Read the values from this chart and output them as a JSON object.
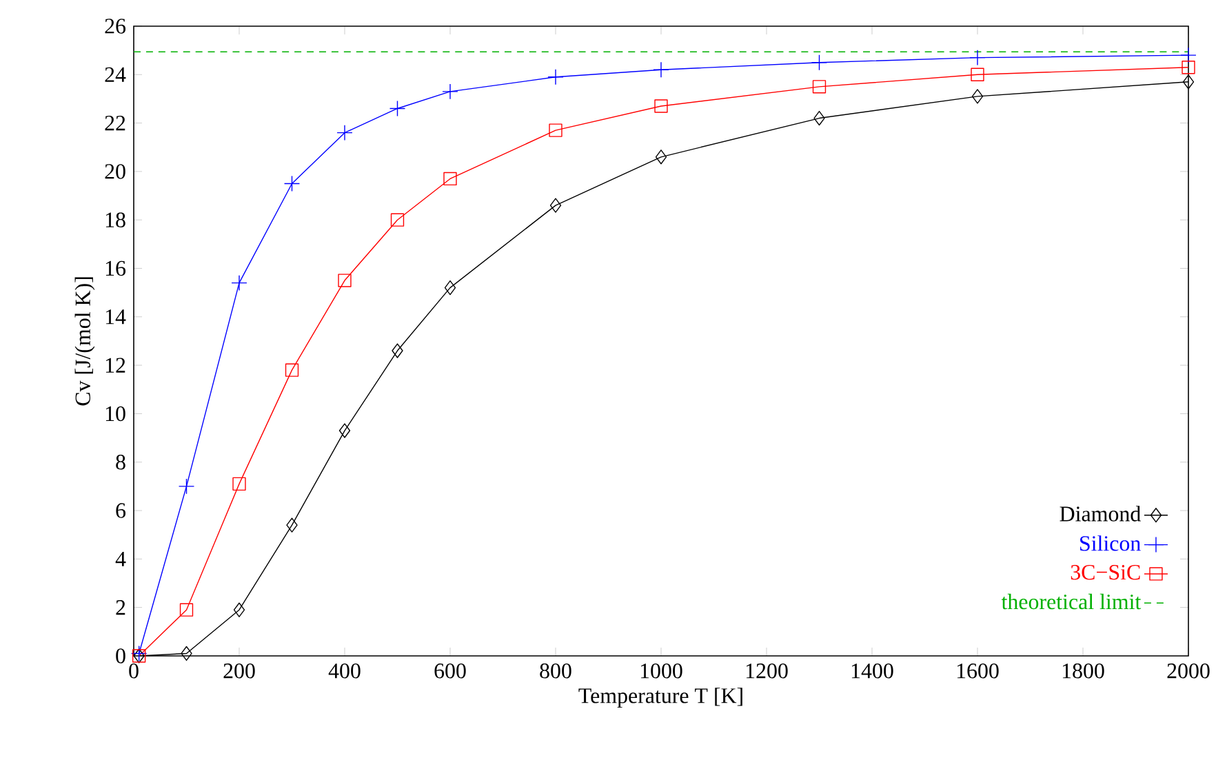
{
  "chart_data": {
    "type": "line",
    "xlabel": "Temperature T [K]",
    "ylabel": "Cv [J/(mol K)]",
    "xlim": [
      0,
      2000
    ],
    "ylim": [
      0,
      26
    ],
    "xticks": [
      0,
      200,
      400,
      600,
      800,
      1000,
      1200,
      1400,
      1600,
      1800,
      2000
    ],
    "yticks": [
      0,
      2,
      4,
      6,
      8,
      10,
      12,
      14,
      16,
      18,
      20,
      22,
      24,
      26
    ],
    "grid": false,
    "legend": "bottom right",
    "series": [
      {
        "name": "Diamond",
        "color": "#000000",
        "marker": "diamond",
        "line_style": "solid",
        "x": [
          10,
          100,
          200,
          300,
          400,
          500,
          600,
          800,
          1000,
          1300,
          1600,
          2000
        ],
        "values": [
          0,
          0.1,
          1.9,
          5.4,
          9.3,
          12.6,
          15.2,
          18.6,
          20.6,
          22.2,
          23.1,
          23.7
        ]
      },
      {
        "name": "Silicon",
        "color": "#0000ff",
        "marker": "cross",
        "line_style": "solid",
        "x": [
          10,
          100,
          200,
          300,
          400,
          500,
          600,
          800,
          1000,
          1300,
          1600,
          2000
        ],
        "values": [
          0.1,
          7.0,
          15.4,
          19.5,
          21.6,
          22.6,
          23.3,
          23.9,
          24.2,
          24.5,
          24.7,
          24.8
        ]
      },
      {
        "name": "3C−SiC",
        "color": "#ff0000",
        "marker": "square",
        "line_style": "solid",
        "x": [
          10,
          100,
          200,
          300,
          400,
          500,
          600,
          800,
          1000,
          1300,
          1600,
          2000
        ],
        "values": [
          0,
          1.9,
          7.1,
          11.8,
          15.5,
          18.0,
          19.7,
          21.7,
          22.7,
          23.5,
          24.0,
          24.3
        ]
      },
      {
        "name": "theoretical limit",
        "color": "#00b000",
        "marker": "none",
        "line_style": "dashed",
        "x": [
          0,
          2000
        ],
        "values": [
          24.94,
          24.94
        ]
      }
    ]
  }
}
